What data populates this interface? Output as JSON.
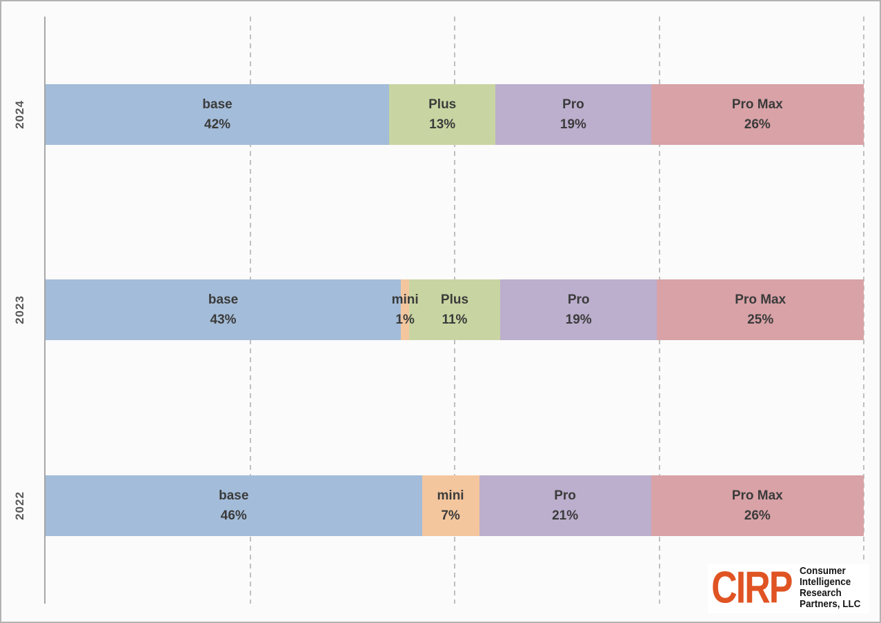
{
  "chart_data": {
    "type": "bar",
    "orientation": "horizontal",
    "stacking": "100%",
    "unit": "%",
    "title": "",
    "xlabel": "",
    "ylabel": "",
    "xlim": [
      0,
      100
    ],
    "gridlines_pct": [
      25,
      50,
      75,
      100
    ],
    "grid_style": "dashed",
    "legend_position": "none",
    "categories": [
      "2024",
      "2023",
      "2022"
    ],
    "segment_names": [
      "base",
      "mini",
      "Plus",
      "Pro",
      "Pro Max"
    ],
    "series": [
      {
        "category": "2024",
        "segments": [
          {
            "label": "base",
            "value": 42,
            "color": "#a3bcd9"
          },
          {
            "label": "Plus",
            "value": 13,
            "color": "#c8d5a2"
          },
          {
            "label": "Pro",
            "value": 19,
            "color": "#bcaecd"
          },
          {
            "label": "Pro Max",
            "value": 26,
            "color": "#d8a2a7"
          }
        ]
      },
      {
        "category": "2023",
        "segments": [
          {
            "label": "base",
            "value": 43,
            "color": "#a3bcd9"
          },
          {
            "label": "mini",
            "value": 1,
            "color": "#f4c69e"
          },
          {
            "label": "Plus",
            "value": 11,
            "color": "#c8d5a2"
          },
          {
            "label": "Pro",
            "value": 19,
            "color": "#bcaecd"
          },
          {
            "label": "Pro Max",
            "value": 25,
            "color": "#d8a2a7"
          }
        ]
      },
      {
        "category": "2022",
        "segments": [
          {
            "label": "base",
            "value": 46,
            "color": "#a3bcd9"
          },
          {
            "label": "mini",
            "value": 7,
            "color": "#f4c69e"
          },
          {
            "label": "Pro",
            "value": 21,
            "color": "#bcaecd"
          },
          {
            "label": "Pro Max",
            "value": 26,
            "color": "#d8a2a7"
          }
        ]
      }
    ]
  },
  "logo": {
    "abbr": "CIRP",
    "abbr_color": "#e05423",
    "lines": [
      "Consumer",
      "Intelligence",
      "Research",
      "Partners, LLC"
    ]
  }
}
